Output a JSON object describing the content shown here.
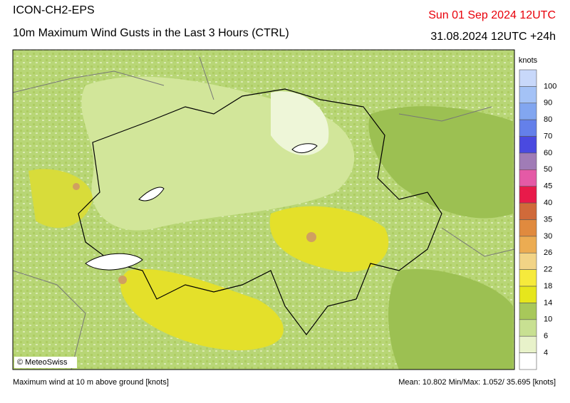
{
  "header": {
    "model": "ICON-CH2-EPS",
    "title": "10m Maximum Wind Gusts in the Last 3 Hours (CTRL)",
    "valid_time": "Sun 01 Sep 2024 12UTC",
    "run_time": "31.08.2024 12UTC +24h"
  },
  "legend": {
    "unit": "knots",
    "levels": [
      100,
      90,
      80,
      70,
      60,
      50,
      45,
      40,
      35,
      30,
      26,
      22,
      18,
      14,
      10,
      6,
      4
    ],
    "colors": [
      "#c8d8fa",
      "#a4c2f6",
      "#82a6f0",
      "#6480ea",
      "#4a4ae0",
      "#a07cb6",
      "#e45aa6",
      "#e81a4a",
      "#d06a3a",
      "#e08a3e",
      "#ecac52",
      "#f2d486",
      "#f6ea3c",
      "#e6e61c",
      "#a8c85a",
      "#c8e092",
      "#e8f2ca",
      "#ffffff"
    ]
  },
  "map": {
    "copyright": "© MeteoSwiss"
  },
  "footer": {
    "description": "Maximum wind at 10 m above ground [knots]",
    "statistics": "Mean:  10.802 Min/Max:  1.052/ 35.695 [knots]"
  }
}
